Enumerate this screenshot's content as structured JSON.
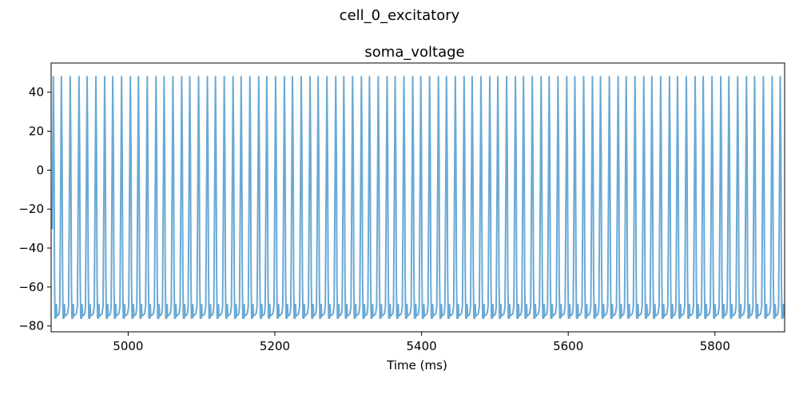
{
  "figure": {
    "suptitle": "cell_0_excitatory"
  },
  "chart_data": {
    "type": "line",
    "title": "soma_voltage",
    "xlabel": "Time (ms)",
    "ylabel": "",
    "xlim": [
      4895,
      5895
    ],
    "ylim": [
      -83,
      55
    ],
    "xticks": [
      5000,
      5200,
      5400,
      5600,
      5800
    ],
    "yticks": [
      -80,
      -60,
      -40,
      -20,
      0,
      20,
      40
    ],
    "grid": false,
    "series": [
      {
        "name": "soma_voltage",
        "color": "#6aa9d5",
        "pattern": "tonic_spiking",
        "spike_times_ms": [
          4898,
          4909,
          4921,
          4933,
          4944,
          4956,
          4968,
          4979,
          4991,
          5003,
          5014,
          5026,
          5038,
          5049,
          5061,
          5073,
          5084,
          5096,
          5108,
          5119,
          5131,
          5143,
          5154,
          5166,
          5178,
          5189,
          5201,
          5213,
          5224,
          5236,
          5248,
          5259,
          5271,
          5283,
          5294,
          5306,
          5318,
          5329,
          5341,
          5353,
          5364,
          5376,
          5388,
          5399,
          5411,
          5423,
          5434,
          5446,
          5458,
          5469,
          5481,
          5493,
          5504,
          5516,
          5528,
          5539,
          5551,
          5563,
          5574,
          5586,
          5598,
          5609,
          5621,
          5633,
          5644,
          5656,
          5668,
          5679,
          5691,
          5703,
          5714,
          5726,
          5738,
          5749,
          5761,
          5773,
          5784,
          5796,
          5808,
          5819,
          5831,
          5843,
          5854,
          5866,
          5878,
          5889
        ],
        "spike_peak_mv": 48,
        "trough_mv": -76,
        "ahp_recovery_mv": -69
      }
    ]
  }
}
